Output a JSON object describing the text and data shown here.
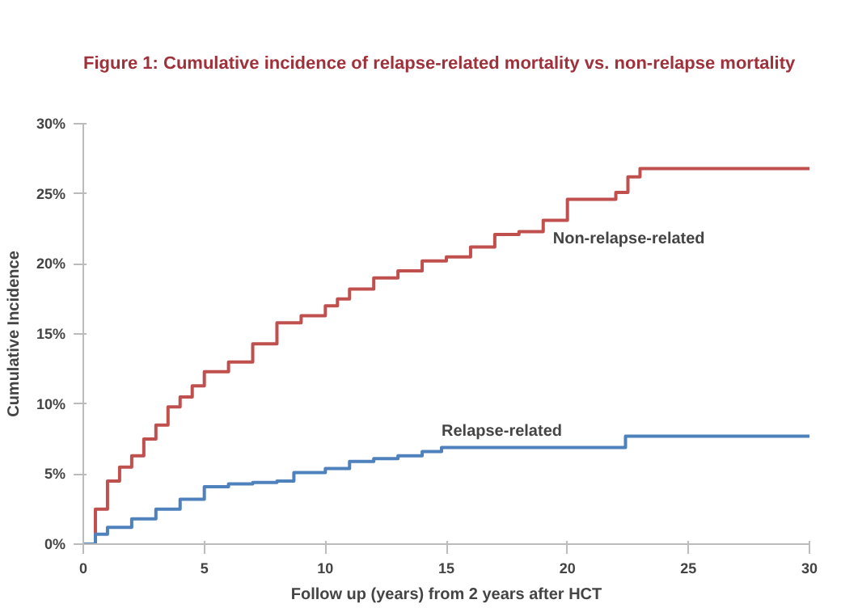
{
  "chart_data": {
    "type": "step",
    "title": "Figure 1: Cumulative incidence of relapse-related mortality vs. non-relapse mortality",
    "xlabel": "Follow up (years) from 2 years after HCT",
    "ylabel": "Cumulative Incidence",
    "xlim": [
      0,
      30
    ],
    "xticks": [
      0,
      5,
      10,
      15,
      20,
      25,
      30
    ],
    "ylim": [
      0,
      30
    ],
    "yticks": [
      {
        "value": 0,
        "label": "0%"
      },
      {
        "value": 5,
        "label": "5%"
      },
      {
        "value": 10,
        "label": "10%"
      },
      {
        "value": 15,
        "label": "15%"
      },
      {
        "value": 20,
        "label": "20%"
      },
      {
        "value": 25,
        "label": "25%"
      },
      {
        "value": 30,
        "label": "30%"
      }
    ],
    "grid": false,
    "series": [
      {
        "name": "Non-relapse-related",
        "color": "#c0504d",
        "x": [
          0,
          0.5,
          1,
          1.5,
          2,
          2.5,
          3,
          3.5,
          4,
          4.5,
          5,
          6,
          7,
          8,
          9,
          10,
          10.5,
          11,
          12,
          13,
          14,
          15,
          16,
          17,
          18,
          19,
          20,
          22,
          22.5,
          23,
          30
        ],
        "values": [
          0,
          2.5,
          4.5,
          5.5,
          6.3,
          7.5,
          8.5,
          9.8,
          10.5,
          11.3,
          12.3,
          13,
          14.3,
          15.8,
          16.3,
          17,
          17.5,
          18.2,
          19,
          19.5,
          20.2,
          20.5,
          21.2,
          22.1,
          22.3,
          23.1,
          24.6,
          25.1,
          26.2,
          26.8,
          26.8
        ]
      },
      {
        "name": "Relapse-related",
        "color": "#4f81bd",
        "x": [
          0,
          0.5,
          1,
          2,
          3,
          4,
          5,
          6,
          7,
          8,
          8.7,
          10,
          11,
          12,
          13,
          14,
          14.8,
          22.4,
          30
        ],
        "values": [
          0,
          0.7,
          1.2,
          1.8,
          2.5,
          3.2,
          4.1,
          4.3,
          4.4,
          4.5,
          5.1,
          5.4,
          5.9,
          6.1,
          6.3,
          6.6,
          6.9,
          7.7,
          7.7
        ]
      }
    ]
  }
}
